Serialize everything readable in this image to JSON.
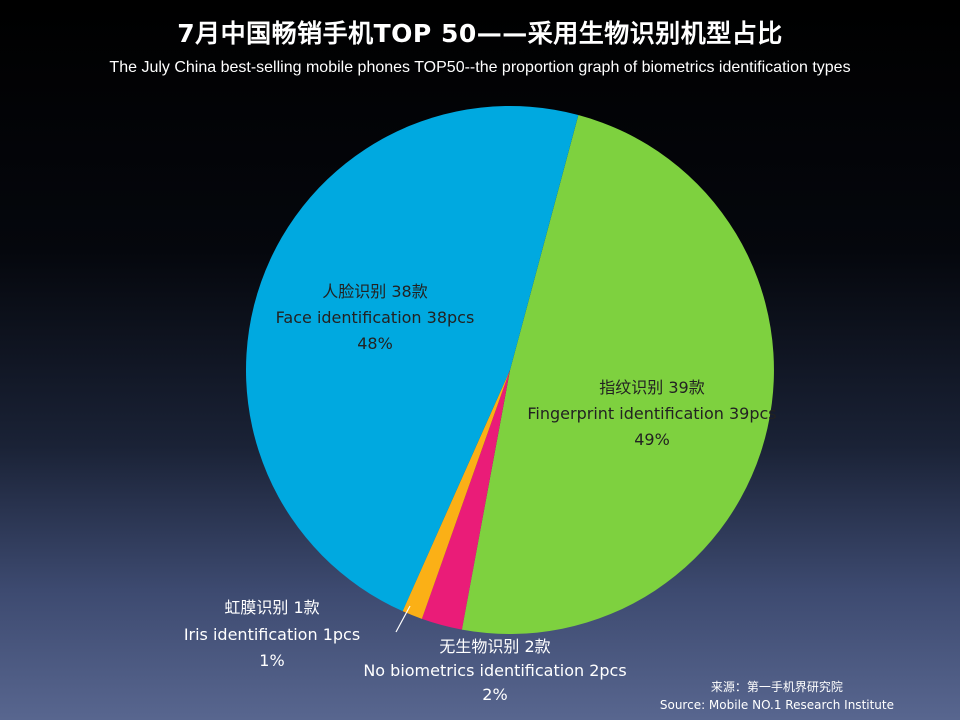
{
  "chart_data": {
    "type": "pie",
    "title": "7月中国畅销手机TOP 50——采用生物识别机型占比",
    "subtitle": "The July China best-selling mobile phones TOP50--the proportion graph of biometrics identification types",
    "slices": [
      {
        "label_cn": "指纹识别  39款",
        "label_en": "Fingerprint identification 39pcs",
        "count": 39,
        "percent_label": "49%",
        "value": 39,
        "color": "#7ed13f"
      },
      {
        "label_cn": "无生物识别  2款",
        "label_en": "No biometrics identification 2pcs",
        "count": 2,
        "percent_label": "2%",
        "value": 2,
        "color": "#ea1c78"
      },
      {
        "label_cn": "虹膜识别  1款",
        "label_en": "Iris identification 1pcs",
        "count": 1,
        "percent_label": "1%",
        "value": 1,
        "color": "#fbb016"
      },
      {
        "label_cn": "人脸识别 38款",
        "label_en": "Face identification 38pcs",
        "count": 38,
        "percent_label": "48%",
        "value": 38,
        "color": "#00a9e0"
      }
    ],
    "legend": "none"
  },
  "source": {
    "cn": "来源：第一手机界研究院",
    "en": "Source: Mobile NO.1 Research Institute"
  }
}
